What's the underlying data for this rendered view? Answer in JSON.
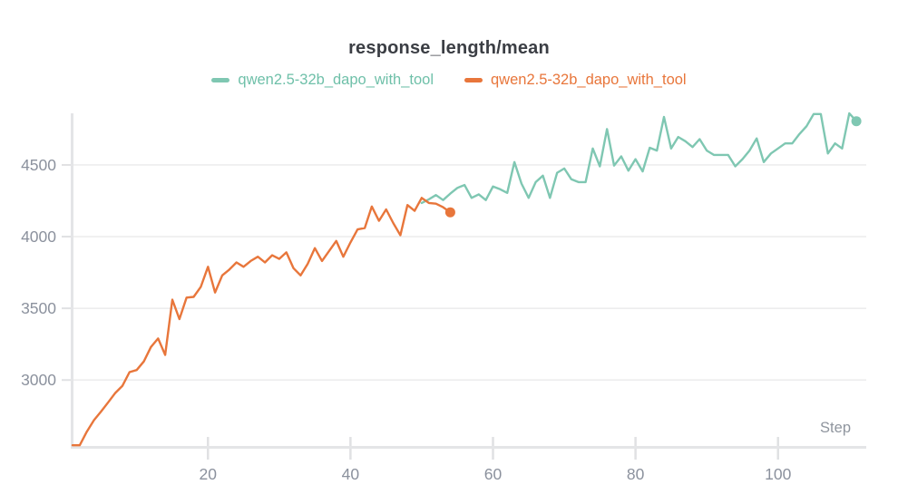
{
  "title": "response_length/mean",
  "xlabel": "Step",
  "legend": [
    {
      "label": "qwen2.5-32b_dapo_with_tool",
      "color": "#7fc7b2"
    },
    {
      "label": "qwen2.5-32b_dapo_with_tool",
      "color": "#e8763b"
    }
  ],
  "colors": {
    "teal": "#7fc7b2",
    "orange": "#e8763b",
    "title_text": "#3b3e44",
    "tick_text": "#8b919d",
    "axis_line": "#e4e5e7",
    "gridline": "#ededee",
    "background": "#ffffff"
  },
  "chart_data": {
    "type": "line",
    "title": "response_length/mean",
    "xlabel": "Step",
    "ylabel": "",
    "grid": "horizontal",
    "legend_position": "top-center",
    "xlim": [
      1,
      112
    ],
    "ylim": [
      2540,
      4860
    ],
    "x_ticks": [
      20,
      40,
      60,
      80,
      100
    ],
    "y_ticks": [
      3000,
      3500,
      4000,
      4500
    ],
    "series": [
      {
        "name": "qwen2.5-32b_dapo_with_tool",
        "color": "#7fc7b2",
        "start_step": 50,
        "end_marker": true,
        "values": [
          4235,
          4260,
          4290,
          4255,
          4300,
          4340,
          4360,
          4270,
          4295,
          4255,
          4350,
          4330,
          4305,
          4520,
          4370,
          4270,
          4380,
          4425,
          4270,
          4445,
          4475,
          4400,
          4380,
          4380,
          4615,
          4490,
          4750,
          4495,
          4560,
          4460,
          4540,
          4455,
          4620,
          4600,
          4835,
          4615,
          4695,
          4665,
          4625,
          4680,
          4600,
          4570,
          4570,
          4570,
          4490,
          4540,
          4600,
          4685,
          4520,
          4580,
          4615,
          4650,
          4650,
          4715,
          4770,
          4855,
          4855,
          4580,
          4650,
          4615,
          4860,
          4805
        ]
      },
      {
        "name": "qwen2.5-32b_dapo_with_tool",
        "color": "#e8763b",
        "start_step": 1,
        "end_marker": true,
        "values": [
          2545,
          2545,
          2640,
          2720,
          2780,
          2845,
          2910,
          2960,
          3055,
          3070,
          3130,
          3230,
          3290,
          3175,
          3560,
          3425,
          3575,
          3580,
          3650,
          3790,
          3610,
          3730,
          3770,
          3820,
          3790,
          3830,
          3860,
          3820,
          3870,
          3845,
          3890,
          3780,
          3730,
          3810,
          3920,
          3830,
          3900,
          3970,
          3860,
          3960,
          4050,
          4060,
          4210,
          4110,
          4190,
          4095,
          4010,
          4220,
          4180,
          4270,
          4235,
          4230,
          4205,
          4170
        ]
      }
    ]
  }
}
